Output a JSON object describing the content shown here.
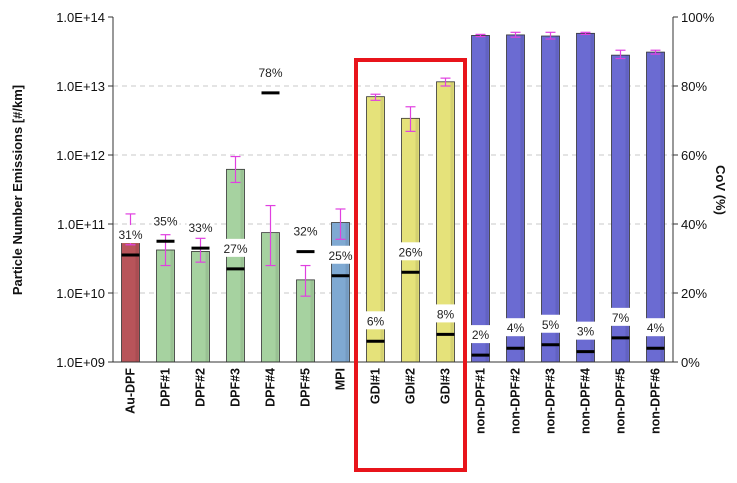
{
  "chart_data": {
    "type": "bar",
    "y_axis": {
      "label": "Particle Number Emissions [#/km]",
      "scale": "log",
      "range": [
        1000000000.0,
        100000000000000.0
      ],
      "ticks": [
        {
          "value": 1000000000.0,
          "label": "1.0E+09"
        },
        {
          "value": 10000000000.0,
          "label": "1.0E+10"
        },
        {
          "value": 100000000000.0,
          "label": "1.0E+11"
        },
        {
          "value": 1000000000000.0,
          "label": "1.0E+12"
        },
        {
          "value": 10000000000000.0,
          "label": "1.0E+13"
        },
        {
          "value": 100000000000000.0,
          "label": "1.0E+14"
        }
      ]
    },
    "y2_axis": {
      "label": "CoV (%)",
      "range": [
        0,
        100
      ],
      "ticks": [
        {
          "value": 0,
          "label": "0%"
        },
        {
          "value": 20,
          "label": "20%"
        },
        {
          "value": 40,
          "label": "40%"
        },
        {
          "value": 60,
          "label": "60%"
        },
        {
          "value": 80,
          "label": "80%"
        },
        {
          "value": 100,
          "label": "100%"
        }
      ]
    },
    "grid": "horizontal dashed",
    "highlight": {
      "categories": [
        "GDI#1",
        "GDI#2",
        "GDI#3"
      ],
      "color": "#e8141b"
    },
    "bars": [
      {
        "category": "Au-DPF",
        "value": 85000000000.0,
        "err_low": 50000000000.0,
        "err_high": 140000000000.0,
        "cov": 31,
        "cov_label": "31%",
        "color": "#b8545a"
      },
      {
        "category": "DPF#1",
        "value": 42000000000.0,
        "err_low": 25000000000.0,
        "err_high": 70000000000.0,
        "cov": 35,
        "cov_label": "35%",
        "color": "#a6d2a0"
      },
      {
        "category": "DPF#2",
        "value": 40000000000.0,
        "err_low": 28000000000.0,
        "err_high": 62000000000.0,
        "cov": 33,
        "cov_label": "33%",
        "color": "#a6d2a0"
      },
      {
        "category": "DPF#3",
        "value": 620000000000.0,
        "err_low": 400000000000.0,
        "err_high": 950000000000.0,
        "cov": 27,
        "cov_label": "27%",
        "color": "#a6d2a0"
      },
      {
        "category": "DPF#4",
        "value": 75000000000.0,
        "err_low": 25000000000.0,
        "err_high": 185000000000.0,
        "cov": 78,
        "cov_label": "78%",
        "color": "#a6d2a0"
      },
      {
        "category": "DPF#5",
        "value": 15500000000.0,
        "err_low": 9000000000.0,
        "err_high": 25000000000.0,
        "cov": 32,
        "cov_label": "32%",
        "color": "#a6d2a0"
      },
      {
        "category": "MPI",
        "value": 105000000000.0,
        "err_low": 60000000000.0,
        "err_high": 165000000000.0,
        "cov": 25,
        "cov_label": "25%",
        "color": "#7fa9d2"
      },
      {
        "category": "GDI#1",
        "value": 7000000000000.0,
        "err_low": 6200000000000.0,
        "err_high": 7600000000000.0,
        "cov": 6,
        "cov_label": "6%",
        "color": "#e5e27a"
      },
      {
        "category": "GDI#2",
        "value": 3400000000000.0,
        "err_low": 2200000000000.0,
        "err_high": 5000000000000.0,
        "cov": 26,
        "cov_label": "26%",
        "color": "#e5e27a"
      },
      {
        "category": "GDI#3",
        "value": 11500000000000.0,
        "err_low": 10000000000000.0,
        "err_high": 13000000000000.0,
        "cov": 8,
        "cov_label": "8%",
        "color": "#e5e27a"
      },
      {
        "category": "non-DPF#1",
        "value": 54000000000000.0,
        "err_low": 52000000000000.0,
        "err_high": 56000000000000.0,
        "cov": 2,
        "cov_label": "2%",
        "color": "#6b6bd2"
      },
      {
        "category": "non-DPF#2",
        "value": 55000000000000.0,
        "err_low": 51000000000000.0,
        "err_high": 60000000000000.0,
        "cov": 4,
        "cov_label": "4%",
        "color": "#6b6bd2"
      },
      {
        "category": "non-DPF#3",
        "value": 53000000000000.0,
        "err_low": 48000000000000.0,
        "err_high": 60000000000000.0,
        "cov": 5,
        "cov_label": "5%",
        "color": "#6b6bd2"
      },
      {
        "category": "non-DPF#4",
        "value": 58000000000000.0,
        "err_low": 56000000000000.0,
        "err_high": 60000000000000.0,
        "cov": 3,
        "cov_label": "3%",
        "color": "#6b6bd2"
      },
      {
        "category": "non-DPF#5",
        "value": 28000000000000.0,
        "err_low": 25000000000000.0,
        "err_high": 33000000000000.0,
        "cov": 7,
        "cov_label": "7%",
        "color": "#6b6bd2"
      },
      {
        "category": "non-DPF#6",
        "value": 31000000000000.0,
        "err_low": 29000000000000.0,
        "err_high": 33000000000000.0,
        "cov": 4,
        "cov_label": "4%",
        "color": "#6b6bd2"
      }
    ]
  }
}
